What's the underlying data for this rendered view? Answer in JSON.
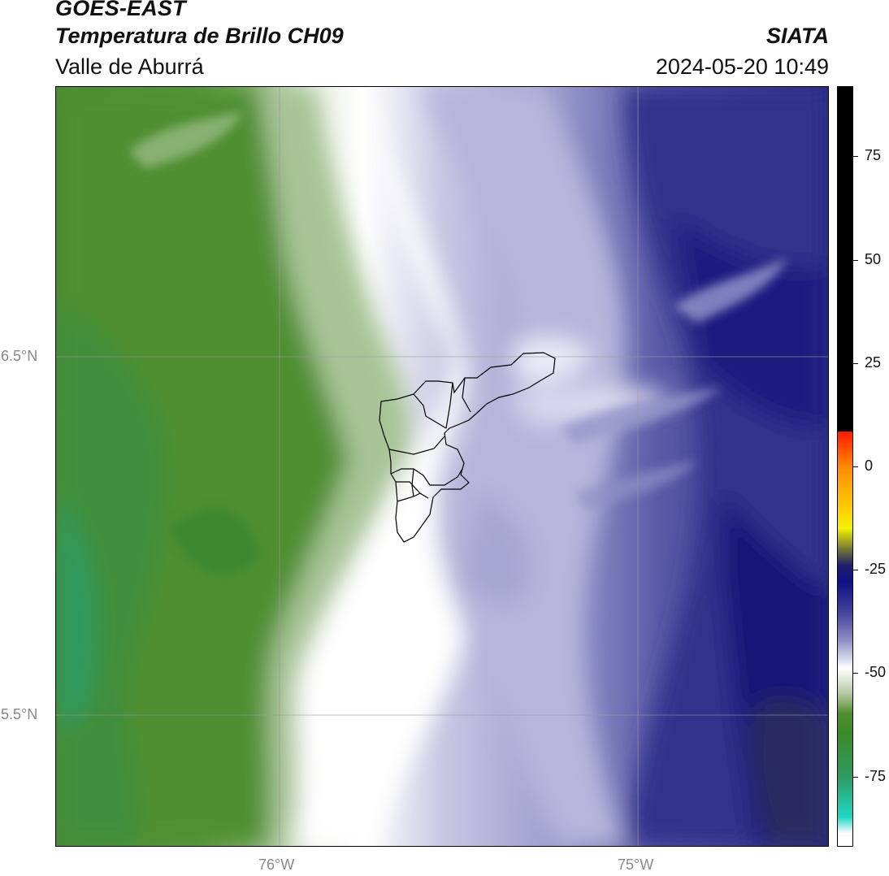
{
  "header": {
    "satellite": "GOES-EAST",
    "product": "Temperatura de Brillo CH09",
    "region": "Valle de Aburrá",
    "agency": "SIATA",
    "datetime": "2024-05-20 10:49"
  },
  "map": {
    "lat_labels": [
      "6.5°N",
      "5.5°N"
    ],
    "lon_labels": [
      "76°W",
      "75°W"
    ]
  },
  "colorbar": {
    "tick_labels": [
      "75",
      "50",
      "25",
      "0",
      "-25",
      "-50",
      "-75"
    ],
    "tick_values": [
      75,
      50,
      25,
      0,
      -25,
      -50,
      -75
    ],
    "range": [
      -92,
      92
    ],
    "stops": [
      {
        "v": 92,
        "c": "#000000"
      },
      {
        "v": 8.5,
        "c": "#000000"
      },
      {
        "v": 8.4,
        "c": "#ff1a00"
      },
      {
        "v": 0,
        "c": "#ff8800"
      },
      {
        "v": -10,
        "c": "#ffcc00"
      },
      {
        "v": -15,
        "c": "#f2f200"
      },
      {
        "v": -20,
        "c": "#777733"
      },
      {
        "v": -24,
        "c": "#1e1e6e"
      },
      {
        "v": -28,
        "c": "#101088"
      },
      {
        "v": -35,
        "c": "#404098"
      },
      {
        "v": -42,
        "c": "#8c8cc4"
      },
      {
        "v": -49,
        "c": "#ffffff"
      },
      {
        "v": -55,
        "c": "#b6c9a4"
      },
      {
        "v": -60,
        "c": "#4e8c2e"
      },
      {
        "v": -65,
        "c": "#3d8a2a"
      },
      {
        "v": -75,
        "c": "#2e9a60"
      },
      {
        "v": -85,
        "c": "#1fd8c8"
      },
      {
        "v": -89,
        "c": "#ffffff"
      }
    ]
  }
}
